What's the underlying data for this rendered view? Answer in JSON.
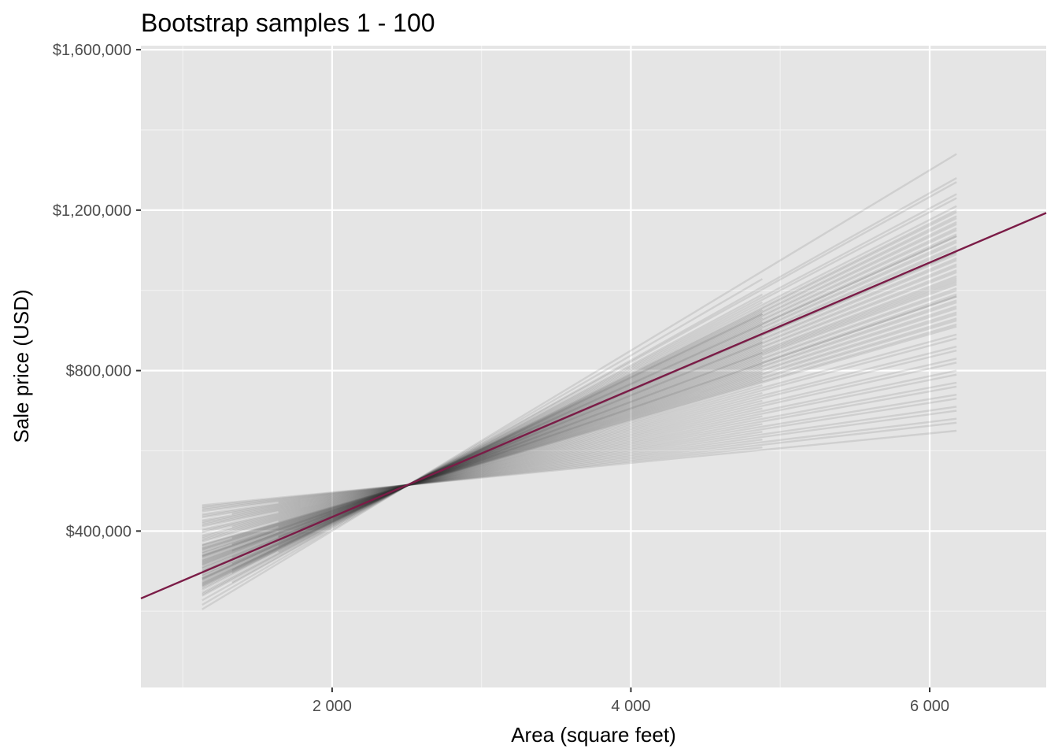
{
  "chart_data": {
    "type": "line",
    "title": "Bootstrap samples 1 - 100",
    "xlabel": "Area (square feet)",
    "ylabel": "Sale price (USD)",
    "xlim": [
      720,
      6780
    ],
    "ylim": [
      10000,
      1610000
    ],
    "x_ticks": [
      2000,
      4000,
      6000
    ],
    "x_tick_labels": [
      "2 000",
      "4 000",
      "6 000"
    ],
    "x_minor_ticks": [
      1000,
      3000,
      5000
    ],
    "y_ticks": [
      400000,
      800000,
      1200000,
      1600000
    ],
    "y_tick_labels": [
      "$400,000",
      "$800,000",
      "$1,200,000",
      "$1,600,000"
    ],
    "y_minor_ticks": [
      200000,
      600000,
      1000000,
      1400000
    ],
    "grid": true,
    "legend": "none",
    "fit_line": {
      "color": "#7b1c47",
      "x": [
        720,
        6780
      ],
      "y": [
        232000,
        1193000
      ]
    },
    "bootstrap_lines": {
      "count": 100,
      "color": "#333333",
      "opacity": 0.12,
      "pivot": {
        "x": 2510,
        "y": 515000
      },
      "x_range_full": [
        1130,
        6180
      ],
      "y_at_right_end": [
        1340000,
        1310000,
        1280000,
        1270000,
        1250000,
        1240000,
        1230000,
        1220000,
        1210000,
        1200000,
        1190000,
        1185000,
        1180000,
        1175000,
        1170000,
        1165000,
        1160000,
        1155000,
        1150000,
        1145000,
        1140000,
        1135000,
        1130000,
        1125000,
        1120000,
        1115000,
        1110000,
        1105000,
        1100000,
        1095000,
        1090000,
        1085000,
        1080000,
        1075000,
        1070000,
        1065000,
        1060000,
        1055000,
        1050000,
        1045000,
        1040000,
        1035000,
        1030000,
        1025000,
        1020000,
        1015000,
        1010000,
        1005000,
        1000000,
        995000,
        990000,
        985000,
        980000,
        975000,
        970000,
        965000,
        960000,
        955000,
        950000,
        945000,
        940000,
        935000,
        930000,
        925000,
        920000,
        915000,
        910000,
        900000,
        890000,
        880000,
        870000,
        860000,
        850000,
        840000,
        830000,
        820000,
        810000,
        800000,
        790000,
        780000,
        770000,
        760000,
        750000,
        740000,
        730000,
        720000,
        710000,
        700000,
        690000,
        680000,
        670000,
        660000,
        650000,
        1195000,
        1175000,
        1135000,
        1095000,
        1065000,
        1025000,
        985000
      ]
    }
  }
}
